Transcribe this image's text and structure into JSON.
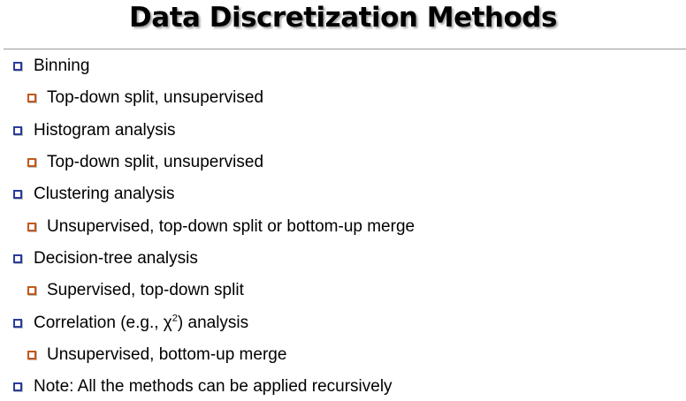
{
  "slide": {
    "title": "Data Discretization Methods",
    "bullet_colors": {
      "level1": "#2a3c9c",
      "level2": "#c1581e"
    },
    "items": [
      {
        "level": 1,
        "text": "Binning"
      },
      {
        "level": 2,
        "text": "Top-down split, unsupervised"
      },
      {
        "level": 1,
        "text": "Histogram analysis"
      },
      {
        "level": 2,
        "text": "Top-down split, unsupervised"
      },
      {
        "level": 1,
        "text": "Clustering analysis"
      },
      {
        "level": 2,
        "text": "Unsupervised, top-down split or bottom-up merge"
      },
      {
        "level": 1,
        "text": "Decision-tree analysis"
      },
      {
        "level": 2,
        "text": "Supervised, top-down split"
      },
      {
        "level": 1,
        "text_before": "Correlation (e.g., χ",
        "superscript": "2",
        "text_after": ") analysis"
      },
      {
        "level": 2,
        "text": "Unsupervised, bottom-up merge"
      },
      {
        "level": 1,
        "text": "Note: All the methods can be applied recursively"
      }
    ]
  }
}
